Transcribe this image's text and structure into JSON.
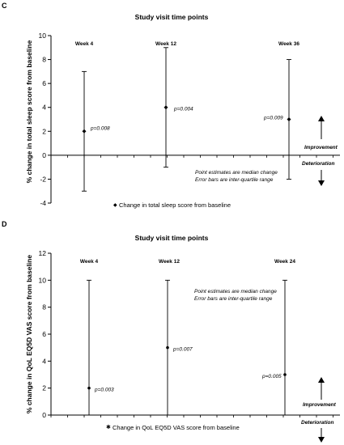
{
  "chart_data": [
    {
      "panel": "C",
      "type": "scatter",
      "title": "Study visit time points",
      "ylabel": "% change in total sleep score from baseline",
      "ylim": [
        -4,
        10
      ],
      "yticks": [
        -4,
        -2,
        0,
        2,
        4,
        6,
        8,
        10
      ],
      "points": [
        {
          "label": "Week 4",
          "value": 2,
          "q1": -3,
          "q3": 7,
          "p": "p=0.008"
        },
        {
          "label": "Week 12",
          "value": 4,
          "q1": -1,
          "q3": 9,
          "p": "p=0.004"
        },
        {
          "label": "Week 36",
          "value": 3,
          "q1": -2,
          "q3": 8,
          "p": "p=0.009"
        }
      ],
      "note_lines": [
        "Point estimates are median change",
        "Error bars are inter-quartile range"
      ],
      "improvement_label": "Improvement",
      "deterioration_label": "Deterioration",
      "legend": "Change in total sleep score from baseline",
      "legend_symbol": "◆"
    },
    {
      "panel": "D",
      "type": "scatter",
      "title": "Study visit time points",
      "ylabel": "% change in QoL EQ5D VAS score from baseline",
      "ylim": [
        0,
        12
      ],
      "yticks": [
        0,
        2,
        4,
        6,
        8,
        10,
        12
      ],
      "points": [
        {
          "label": "Week 4",
          "value": 2,
          "q1": 0,
          "q3": 10,
          "p": "p=0.003"
        },
        {
          "label": "Week 12",
          "value": 5,
          "q1": 0,
          "q3": 10,
          "p": "p=0.007"
        },
        {
          "label": "Week 24",
          "value": 3,
          "q1": 0,
          "q3": 10,
          "p": "p=0.005"
        }
      ],
      "note_lines": [
        "Point estimates are median change",
        "Error bars are inter-quartile range"
      ],
      "improvement_label": "Improvement",
      "deterioration_label": "Deterioration",
      "legend": "Change in QoL EQ5D VAS score from baseline",
      "legend_symbol": "✱"
    }
  ]
}
